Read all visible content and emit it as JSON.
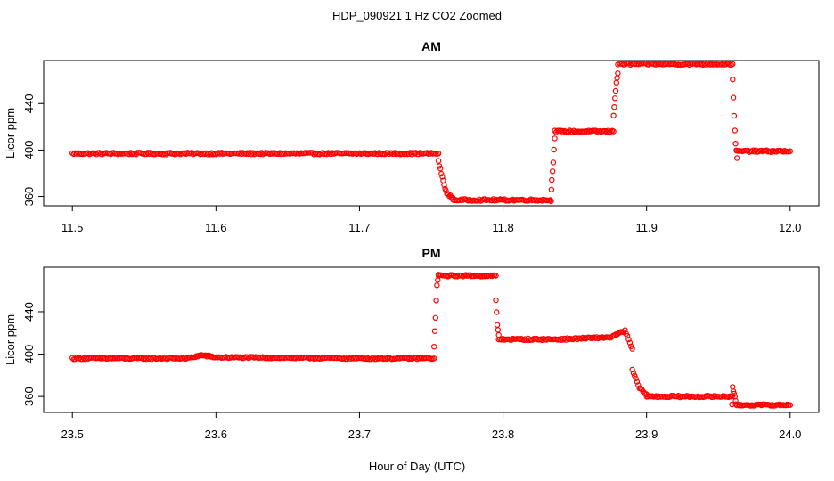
{
  "figure": {
    "suptitle": "HDP_090921  1 Hz CO2 Zoomed",
    "xlabel": "Hour of Day (UTC)"
  },
  "colors": {
    "points": "#ff0000",
    "axis": "#000000"
  },
  "chart_data": [
    {
      "type": "scatter",
      "title": "AM",
      "ylabel": "Licor ppm",
      "xlim": [
        11.5,
        12.0
      ],
      "ylim": [
        352,
        477
      ],
      "xticks": [
        "11.5",
        "11.6",
        "11.7",
        "11.8",
        "11.9",
        "12.0"
      ],
      "xtick_values": [
        11.5,
        11.6,
        11.7,
        11.8,
        11.9,
        12.0
      ],
      "yticks": [
        "360",
        "400",
        "440"
      ],
      "ytick_values": [
        360,
        400,
        440
      ],
      "grid": false,
      "series": [
        {
          "x": [
            11.5,
            11.6,
            11.7,
            11.755
          ],
          "y": [
            397,
            397,
            397,
            397
          ]
        },
        {
          "x": [
            11.755,
            11.757,
            11.759,
            11.761,
            11.765
          ],
          "y": [
            390,
            380,
            370,
            362,
            359
          ]
        },
        {
          "x": [
            11.765,
            11.8,
            11.833
          ],
          "y": [
            357,
            357,
            357
          ]
        },
        {
          "x": [
            11.8335,
            11.834,
            11.835,
            11.836
          ],
          "y": [
            356,
            375,
            390,
            410
          ]
        },
        {
          "x": [
            11.836,
            11.855,
            11.877
          ],
          "y": [
            416,
            416,
            416
          ]
        },
        {
          "x": [
            11.877,
            11.878,
            11.879,
            11.88
          ],
          "y": [
            430,
            445,
            458,
            466
          ]
        },
        {
          "x": [
            11.88,
            11.92,
            11.96
          ],
          "y": [
            474,
            474,
            474
          ]
        },
        {
          "x": [
            11.96,
            11.961,
            11.962,
            11.963
          ],
          "y": [
            460,
            430,
            405,
            393
          ]
        },
        {
          "x": [
            11.963,
            11.98,
            12.0
          ],
          "y": [
            399,
            399,
            399
          ]
        }
      ]
    },
    {
      "type": "scatter",
      "title": "PM",
      "ylabel": "Licor ppm",
      "xlim": [
        23.5,
        24.0
      ],
      "ylim": [
        345,
        482
      ],
      "xticks": [
        "23.5",
        "23.6",
        "23.7",
        "23.8",
        "23.9",
        "24.0"
      ],
      "xtick_values": [
        23.5,
        23.6,
        23.7,
        23.8,
        23.9,
        24.0
      ],
      "yticks": [
        "360",
        "400",
        "440"
      ],
      "ytick_values": [
        360,
        400,
        440
      ],
      "grid": false,
      "series": [
        {
          "x": [
            23.5,
            23.58,
            23.59,
            23.6,
            23.7,
            23.752
          ],
          "y": [
            396,
            396,
            399,
            397,
            396,
            396
          ]
        },
        {
          "x": [
            23.752,
            23.753,
            23.754,
            23.755
          ],
          "y": [
            407,
            435,
            465,
            475
          ]
        },
        {
          "x": [
            23.755,
            23.775,
            23.795
          ],
          "y": [
            474,
            474,
            474
          ]
        },
        {
          "x": [
            23.795,
            23.796,
            23.797
          ],
          "y": [
            451,
            427,
            418
          ]
        },
        {
          "x": [
            23.797,
            23.84,
            23.875,
            23.885,
            23.89
          ],
          "y": [
            414,
            414,
            416,
            422,
            405
          ]
        },
        {
          "x": [
            23.89,
            23.895,
            23.9
          ],
          "y": [
            385,
            368,
            362
          ]
        },
        {
          "x": [
            23.9,
            23.93,
            23.959
          ],
          "y": [
            360,
            360,
            360
          ]
        },
        {
          "x": [
            23.9595,
            23.96,
            23.961,
            23.962
          ],
          "y": [
            353,
            369,
            362,
            356
          ]
        },
        {
          "x": [
            23.962,
            23.98,
            24.0
          ],
          "y": [
            352,
            352,
            352
          ]
        }
      ]
    }
  ]
}
